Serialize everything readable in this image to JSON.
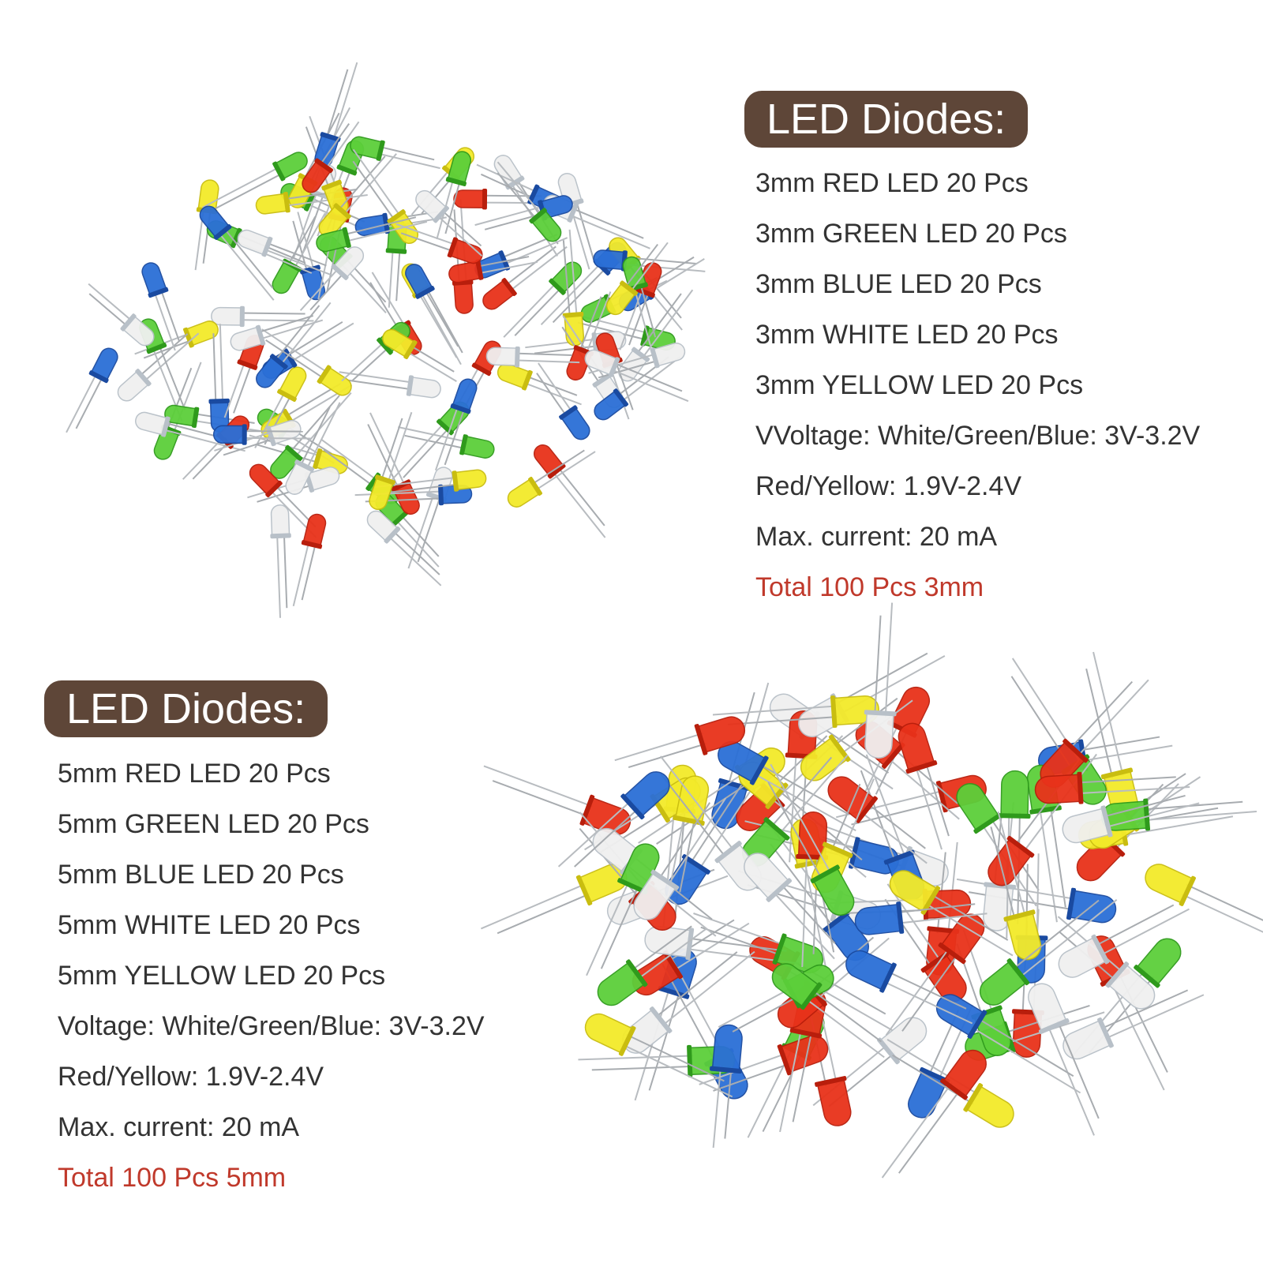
{
  "sections": [
    {
      "heading": "LED Diodes:",
      "lines": [
        "3mm RED LED 20 Pcs",
        "3mm GREEN LED 20 Pcs",
        "3mm BLUE LED 20 Pcs",
        "3mm WHITE LED 20 Pcs",
        "3mm YELLOW LED 20 Pcs",
        "VVoltage: White/Green/Blue: 3V-3.2V",
        "Red/Yellow: 1.9V-2.4V",
        "Max. current: 20 mA"
      ],
      "total": "Total 100 Pcs 3mm"
    },
    {
      "heading": "LED Diodes:",
      "lines": [
        "5mm RED LED 20 Pcs",
        "5mm GREEN LED 20 Pcs",
        "5mm BLUE LED 20 Pcs",
        "5mm WHITE LED 20 Pcs",
        "5mm YELLOW LED 20 Pcs",
        "Voltage: White/Green/Blue: 3V-3.2V",
        "Red/Yellow: 1.9V-2.4V",
        "Max. current: 20 mA"
      ],
      "total": "Total 100 Pcs 5mm"
    }
  ]
}
